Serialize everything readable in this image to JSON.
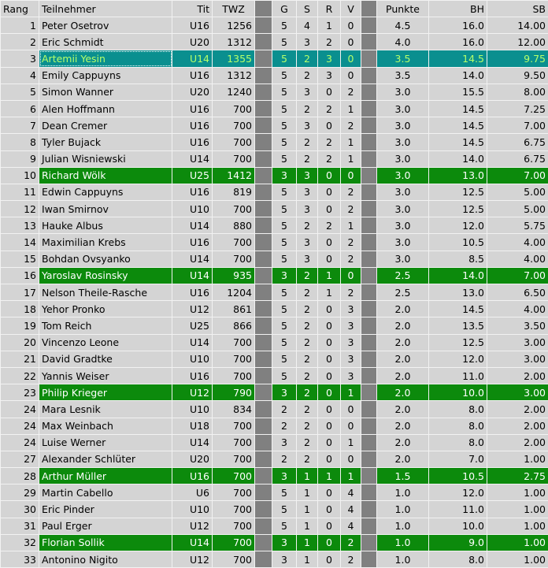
{
  "table": {
    "header": [
      "Rang",
      "Teilnehmer",
      "Tit",
      "TWZ",
      "G",
      "S",
      "R",
      "V",
      "Punkte",
      "BH",
      "SB"
    ],
    "rows": [
      [
        "1",
        "Peter Osetrov",
        "U16",
        "1256",
        "5",
        "4",
        "1",
        "0",
        "4.5",
        "16.0",
        "14.00"
      ],
      [
        "2",
        "Eric Schmidt",
        "U20",
        "1312",
        "5",
        "3",
        "2",
        "0",
        "4.0",
        "16.0",
        "12.00"
      ],
      [
        "3",
        "Artemii Yesin",
        "U14",
        "1355",
        "5",
        "2",
        "3",
        "0",
        "3.5",
        "14.5",
        "9.75"
      ],
      [
        "4",
        "Emily Cappuyns",
        "U16",
        "1312",
        "5",
        "2",
        "3",
        "0",
        "3.5",
        "14.0",
        "9.50"
      ],
      [
        "5",
        "Simon Wanner",
        "U20",
        "1240",
        "5",
        "3",
        "0",
        "2",
        "3.0",
        "15.5",
        "8.00"
      ],
      [
        "6",
        "Alen Hoffmann",
        "U16",
        "700",
        "5",
        "2",
        "2",
        "1",
        "3.0",
        "14.5",
        "7.25"
      ],
      [
        "7",
        "Dean Cremer",
        "U16",
        "700",
        "5",
        "3",
        "0",
        "2",
        "3.0",
        "14.5",
        "7.00"
      ],
      [
        "8",
        "Tyler Bujack",
        "U16",
        "700",
        "5",
        "2",
        "2",
        "1",
        "3.0",
        "14.5",
        "6.75"
      ],
      [
        "9",
        "Julian Wisniewski",
        "U14",
        "700",
        "5",
        "2",
        "2",
        "1",
        "3.0",
        "14.0",
        "6.75"
      ],
      [
        "10",
        "Richard Wölk",
        "U25",
        "1412",
        "3",
        "3",
        "0",
        "0",
        "3.0",
        "13.0",
        "7.00"
      ],
      [
        "11",
        "Edwin Cappuyns",
        "U16",
        "819",
        "5",
        "3",
        "0",
        "2",
        "3.0",
        "12.5",
        "5.00"
      ],
      [
        "12",
        "Iwan Smirnov",
        "U10",
        "700",
        "5",
        "3",
        "0",
        "2",
        "3.0",
        "12.5",
        "5.00"
      ],
      [
        "13",
        "Hauke Albus",
        "U14",
        "880",
        "5",
        "2",
        "2",
        "1",
        "3.0",
        "12.0",
        "5.75"
      ],
      [
        "14",
        "Maximilian Krebs",
        "U16",
        "700",
        "5",
        "3",
        "0",
        "2",
        "3.0",
        "10.5",
        "4.00"
      ],
      [
        "15",
        "Bohdan Ovsyanko",
        "U14",
        "700",
        "5",
        "3",
        "0",
        "2",
        "3.0",
        "8.5",
        "4.00"
      ],
      [
        "16",
        "Yaroslav Rosinsky",
        "U14",
        "935",
        "3",
        "2",
        "1",
        "0",
        "2.5",
        "14.0",
        "7.00"
      ],
      [
        "17",
        "Nelson Theile-Rasche",
        "U16",
        "1204",
        "5",
        "2",
        "1",
        "2",
        "2.5",
        "13.0",
        "6.50"
      ],
      [
        "18",
        "Yehor Pronko",
        "U12",
        "861",
        "5",
        "2",
        "0",
        "3",
        "2.0",
        "14.5",
        "4.00"
      ],
      [
        "19",
        "Tom Reich",
        "U25",
        "866",
        "5",
        "2",
        "0",
        "3",
        "2.0",
        "13.5",
        "3.50"
      ],
      [
        "20",
        "Vincenzo Leone",
        "U14",
        "700",
        "5",
        "2",
        "0",
        "3",
        "2.0",
        "12.5",
        "3.00"
      ],
      [
        "21",
        "David Gradtke",
        "U10",
        "700",
        "5",
        "2",
        "0",
        "3",
        "2.0",
        "12.0",
        "3.00"
      ],
      [
        "22",
        "Yannis Weiser",
        "U16",
        "700",
        "5",
        "2",
        "0",
        "3",
        "2.0",
        "11.0",
        "2.00"
      ],
      [
        "23",
        "Philip Krieger",
        "U12",
        "790",
        "3",
        "2",
        "0",
        "1",
        "2.0",
        "10.0",
        "3.00"
      ],
      [
        "24",
        "Mara Lesnik",
        "U10",
        "834",
        "2",
        "2",
        "0",
        "0",
        "2.0",
        "8.0",
        "2.00"
      ],
      [
        "24",
        "Max Weinbach",
        "U18",
        "700",
        "2",
        "2",
        "0",
        "0",
        "2.0",
        "8.0",
        "2.00"
      ],
      [
        "24",
        "Luise Werner",
        "U14",
        "700",
        "3",
        "2",
        "0",
        "1",
        "2.0",
        "8.0",
        "2.00"
      ],
      [
        "27",
        "Alexander Schlüter",
        "U20",
        "700",
        "2",
        "2",
        "0",
        "0",
        "2.0",
        "7.0",
        "1.00"
      ],
      [
        "28",
        "Arthur Müller",
        "U16",
        "700",
        "3",
        "1",
        "1",
        "1",
        "1.5",
        "10.5",
        "2.75"
      ],
      [
        "29",
        "Martin Cabello",
        "U6",
        "700",
        "5",
        "1",
        "0",
        "4",
        "1.0",
        "12.0",
        "1.00"
      ],
      [
        "30",
        "Eric Pinder",
        "U10",
        "700",
        "5",
        "1",
        "0",
        "4",
        "1.0",
        "11.0",
        "1.00"
      ],
      [
        "31",
        "Paul Erger",
        "U12",
        "700",
        "5",
        "1",
        "0",
        "4",
        "1.0",
        "10.0",
        "1.00"
      ],
      [
        "32",
        "Florian Sollik",
        "U14",
        "700",
        "3",
        "1",
        "0",
        "2",
        "1.0",
        "9.0",
        "1.00"
      ],
      [
        "33",
        "Antonino Nigito",
        "U12",
        "700",
        "3",
        "1",
        "0",
        "2",
        "1.0",
        "8.0",
        "1.00"
      ]
    ]
  }
}
